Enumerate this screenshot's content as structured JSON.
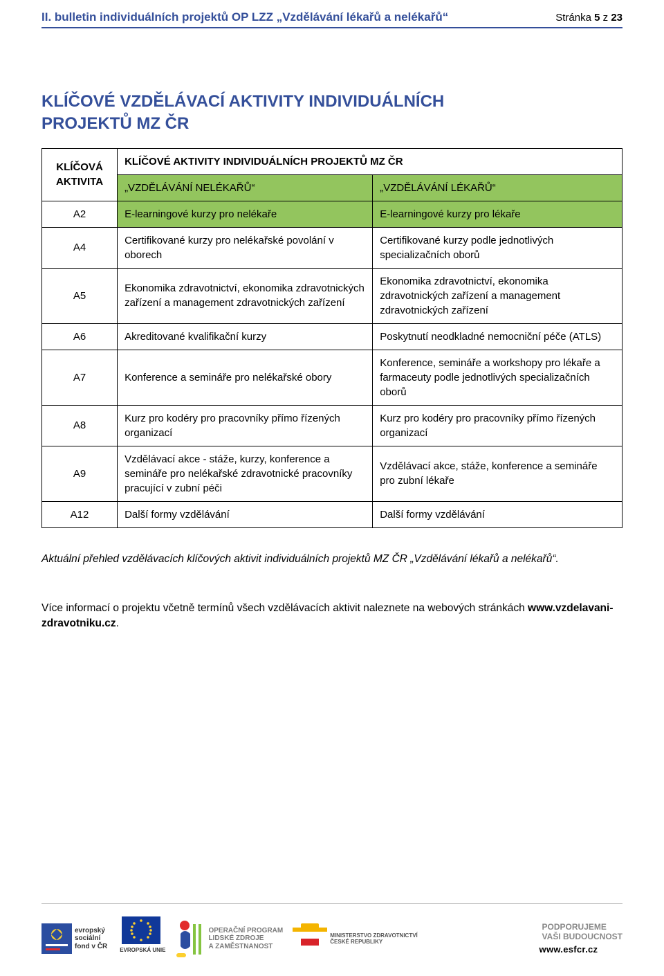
{
  "colors": {
    "header_border": "#344f9a",
    "header_title_color": "#344f9a",
    "section_title_color": "#344f9a",
    "table_green": "#93c55e",
    "text_color": "#1a1a1a"
  },
  "header": {
    "title": "II. bulletin individuálních projektů OP LZZ „Vzdělávání lékařů a nelékařů“",
    "page_label_prefix": "Stránka ",
    "page_current": "5",
    "page_middle": " z ",
    "page_total": "23"
  },
  "section": {
    "title_line1": "KLÍČOVÉ VZDĚLÁVACÍ AKTIVITY INDIVIDUÁLNÍCH",
    "title_line2": "PROJEKTŮ MZ ČR"
  },
  "table": {
    "head_col1": "KLÍČOVÁ AKTIVITA",
    "head_span": "KLÍČOVÉ AKTIVITY INDIVIDUÁLNÍCH PROJEKTŮ MZ ČR",
    "subhead_left": "„VZDĚLÁVÁNÍ NELÉKAŘŮ“",
    "subhead_right": "„VZDĚLÁVÁNÍ LÉKAŘŮ“",
    "rows": [
      {
        "id": "A2",
        "left": "E-learningové kurzy pro nelékaře",
        "right": "E-learningové kurzy pro lékaře",
        "green": true
      },
      {
        "id": "A4",
        "left": "Certifikované kurzy pro nelékařské povolání v oborech",
        "right": "Certifikované kurzy podle jednotlivých specializačních oborů",
        "green": false
      },
      {
        "id": "A5",
        "left": "Ekonomika zdravotnictví, ekonomika zdravotnických zařízení a management zdravotnických zařízení",
        "right": "Ekonomika zdravotnictví, ekonomika zdravotnických zařízení a management zdravotnických zařízení",
        "green": false
      },
      {
        "id": "A6",
        "left": "Akreditované kvalifikační kurzy",
        "right": "Poskytnutí neodkladné nemocniční péče (ATLS)",
        "green": false
      },
      {
        "id": "A7",
        "left": "Konference a semináře pro nelékařské obory",
        "right": "Konference, semináře a workshopy pro lékaře a farmaceuty podle jednotlivých specializačních oborů",
        "green": false
      },
      {
        "id": "A8",
        "left": "Kurz pro kodéry pro pracovníky přímo řízených organizací",
        "right": "Kurz pro kodéry pro pracovníky přímo řízených organizací",
        "green": false
      },
      {
        "id": "A9",
        "left": "Vzdělávací akce - stáže, kurzy, konference a semináře pro nelékařské zdravotnické pracovníky pracující v zubní péči",
        "right": "Vzdělávací akce, stáže, konference a semináře pro zubní lékaře",
        "green": false
      },
      {
        "id": "A12",
        "left": "Další formy vzdělávání",
        "right": "Další formy vzdělávání",
        "green": false
      }
    ]
  },
  "note": "Aktuální přehled vzdělávacích klíčových aktivit individuálních projektů MZ ČR „Vzdělávání lékařů a nelékařů“.",
  "info_prefix": "Více informací o projektu včetně termínů všech vzdělávacích aktivit naleznete na webových stránkách ",
  "info_url": "www.vzdelavani-zdravotniku.cz",
  "info_suffix": ".",
  "footer": {
    "esf_line1": "evropský",
    "esf_line2": "sociální",
    "esf_line3": "fond v ČR",
    "eu_label": "EVROPSKÁ UNIE",
    "op_line1": "OPERAČNÍ PROGRAM",
    "op_line2": "LIDSKÉ ZDROJE",
    "op_line3": "A ZAMĚSTNANOST",
    "mzcr_line1": "MINISTERSTVO ZDRAVOTNICTVÍ",
    "mzcr_line2": "ČESKÉ REPUBLIKY",
    "support_line1": "PODPORUJEME",
    "support_line2": "VAŠI BUDOUCNOST",
    "support_url": "www.esfcr.cz"
  }
}
